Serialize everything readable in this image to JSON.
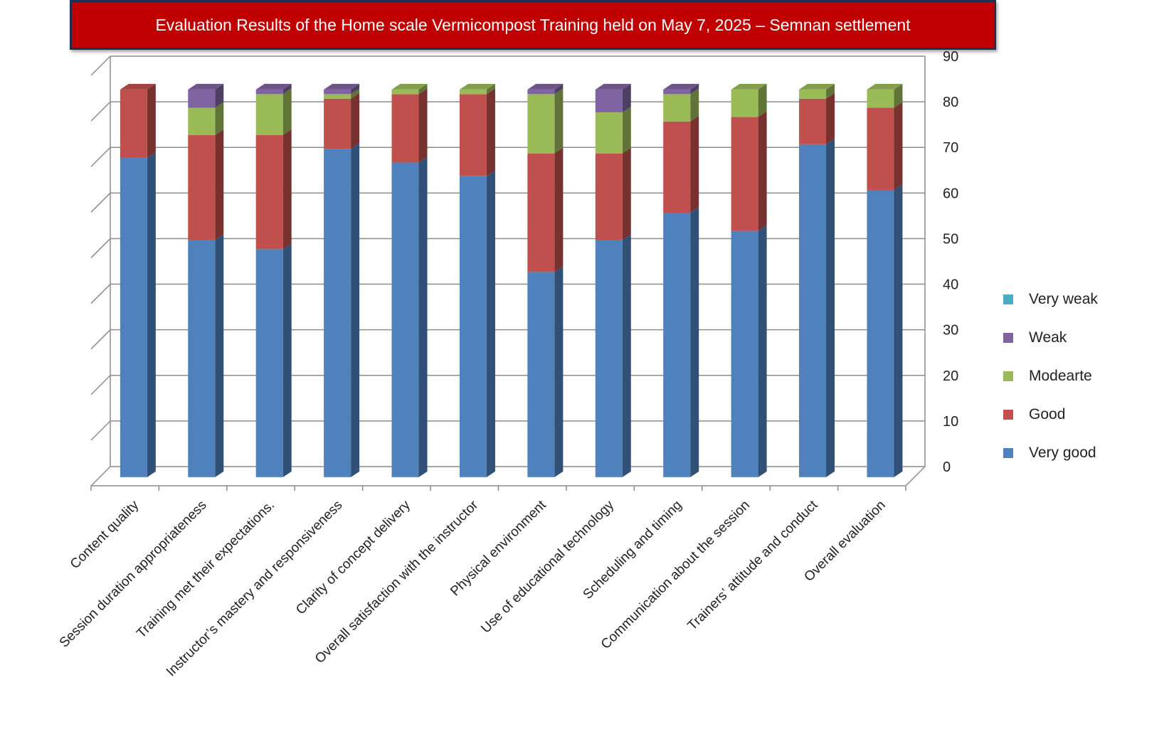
{
  "chart_data": {
    "type": "bar",
    "stacked": true,
    "three_d": true,
    "title": "Evaluation Results of the Home scale Vermicompost Training  held on May 7, 2025 – Semnan  settlement",
    "xlabel": "",
    "ylabel": "",
    "ylim": [
      0,
      90
    ],
    "yticks": [
      0,
      10,
      20,
      30,
      40,
      50,
      60,
      70,
      80,
      90
    ],
    "y_axis_side": "right",
    "grid": true,
    "legend_position": "right",
    "categories": [
      "Content quality",
      "Session duration appropriateness",
      "Training met their expectations.",
      "Instructor’s mastery and responsiveness",
      "Clarity of concept delivery",
      "Overall satisfaction with the instructor",
      "Physical environment",
      "Use of educational technology",
      "Scheduling and timing",
      "Communication about the session",
      "Trainers’ attitude and conduct",
      "Overall evaluation"
    ],
    "series": [
      {
        "name": "Very good",
        "color": "#4f81bd",
        "values": [
          70,
          52,
          50,
          72,
          69,
          66,
          45,
          52,
          58,
          54,
          73,
          63
        ]
      },
      {
        "name": "Good",
        "color": "#c0504d",
        "values": [
          15,
          23,
          25,
          11,
          15,
          18,
          26,
          19,
          20,
          25,
          10,
          18
        ]
      },
      {
        "name": "Modearte",
        "color": "#9bbb59",
        "values": [
          0,
          6,
          9,
          1,
          1,
          1,
          13,
          9,
          6,
          6,
          2,
          4
        ]
      },
      {
        "name": "Weak",
        "color": "#8064a2",
        "values": [
          0,
          4,
          1,
          1,
          0,
          0,
          1,
          5,
          1,
          0,
          0,
          0
        ]
      },
      {
        "name": "Very weak",
        "color": "#4bacc6",
        "values": [
          0,
          0,
          0,
          0,
          0,
          0,
          0,
          0,
          0,
          0,
          0,
          0
        ]
      }
    ],
    "legend_order": [
      "Very weak",
      "Weak",
      "Modearte",
      "Good",
      "Very good"
    ]
  }
}
